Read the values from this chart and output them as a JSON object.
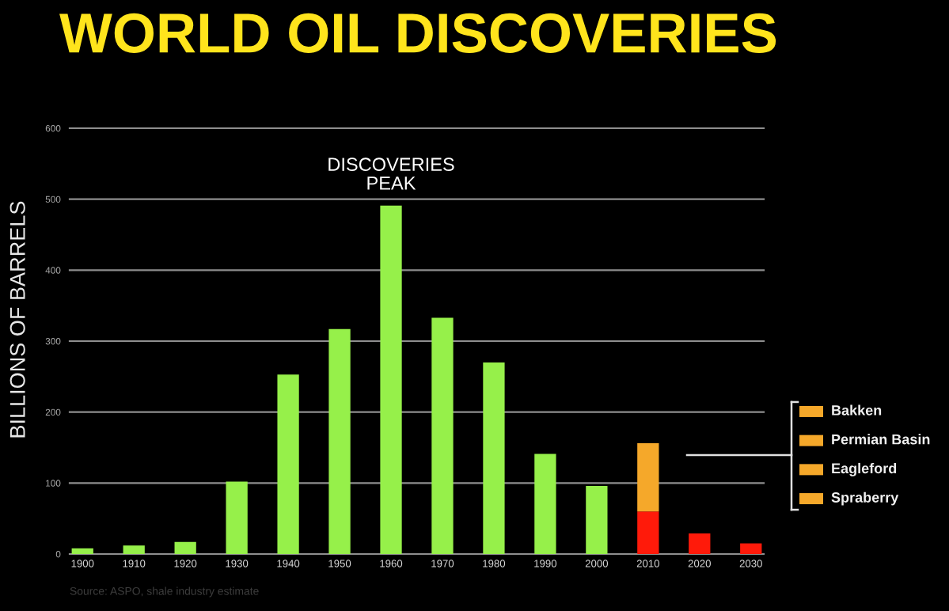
{
  "chart_data": {
    "type": "bar",
    "title": "WORLD OIL DISCOVERIES",
    "ylabel": "BILLIONS OF BARRELS",
    "categories": [
      "1900",
      "1910",
      "1920",
      "1930",
      "1940",
      "1950",
      "1960",
      "1970",
      "1980",
      "1990",
      "2000",
      "2010",
      "2020",
      "2030"
    ],
    "stacked": true,
    "series": [
      {
        "color": "#96f04a",
        "values": [
          8,
          12,
          17,
          102,
          253,
          317,
          491,
          333,
          270,
          141,
          96,
          null,
          null,
          null
        ]
      },
      {
        "color": "#ff1a0a",
        "values": [
          null,
          null,
          null,
          null,
          null,
          null,
          null,
          null,
          null,
          null,
          null,
          60,
          29,
          15
        ]
      },
      {
        "color": "#f5a82a",
        "values": [
          null,
          null,
          null,
          null,
          null,
          null,
          null,
          null,
          null,
          null,
          null,
          96,
          null,
          null
        ]
      }
    ],
    "ylim": [
      0,
      600
    ],
    "yticks": [
      0,
      100,
      200,
      300,
      400,
      500,
      600
    ],
    "grid": "y",
    "annotations": [
      {
        "text": "DISCOVERIES\nPEAK",
        "x": "1960",
        "y": 491
      },
      "Bakken",
      "Permian Basin",
      "Eagleford",
      "Spraberry",
      "Source: ASPO, shale industry estimate"
    ]
  }
}
